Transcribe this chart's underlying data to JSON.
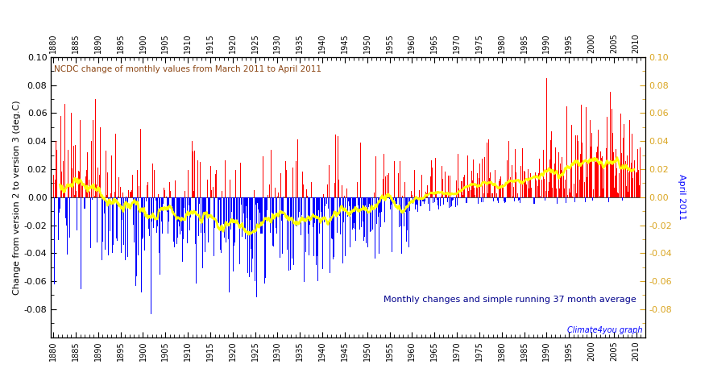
{
  "title": "NCDC change of monthly values from March 2011 to April 2011",
  "ylabel_left": "Change from version 2 to version 3 (deg.C)",
  "ylabel_right": "April 2011",
  "annotation": "Monthly changes and simple running 37 month average",
  "watermark": "Climate4you graph",
  "year_start": 1880,
  "year_end": 2011.5,
  "xlim_left": 1879.5,
  "xlim_right": 2012.0,
  "ylim": [
    -0.1,
    0.1
  ],
  "yticks": [
    -0.08,
    -0.06,
    -0.04,
    -0.02,
    0.0,
    0.02,
    0.04,
    0.06,
    0.08,
    0.1
  ],
  "background_color": "#ffffff",
  "plot_bg_color": "#ffffff",
  "bar_color_pos": "#ff0000",
  "bar_color_neg": "#0000ff",
  "running_avg_color": "#ffff00",
  "title_color": "#8B4513",
  "annotation_color": "#00008B",
  "watermark_color": "#0000ff",
  "right_ylabel_color": "#0000ff",
  "seed": 42,
  "n_months": 1573,
  "avg_window": 37
}
